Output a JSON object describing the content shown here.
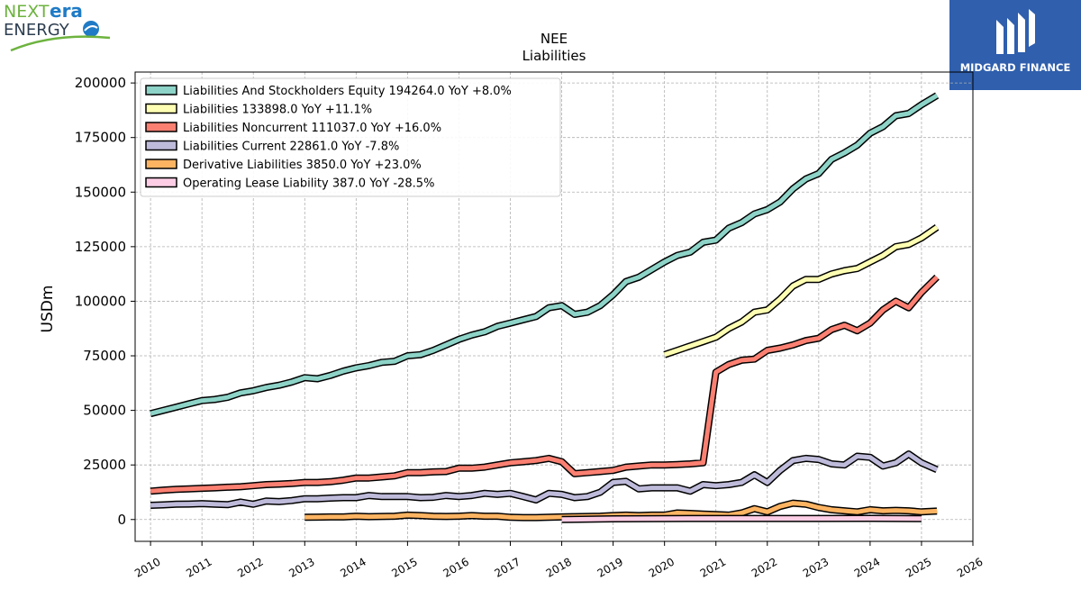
{
  "logos": {
    "left_brand_prefix": "NEXT",
    "left_brand_suffix": "era",
    "left_brand_line2": "ENERGY",
    "right_brand": "MIDGARD FINANCE"
  },
  "colors": {
    "nextera_green": "#6db33f",
    "nextera_blue": "#1f7bc6",
    "midgard_blue": "#2f5fad"
  },
  "chart_data": {
    "type": "line",
    "title": "NEE",
    "subtitle": "Liabilities",
    "xlabel": "",
    "ylabel": "USDm",
    "xlim": [
      2009.7,
      2026.0
    ],
    "ylim": [
      -10000,
      205000
    ],
    "xticks": [
      2010,
      2011,
      2012,
      2013,
      2014,
      2015,
      2016,
      2017,
      2018,
      2019,
      2020,
      2021,
      2022,
      2023,
      2024,
      2025,
      2026
    ],
    "yticks": [
      0,
      25000,
      50000,
      75000,
      100000,
      125000,
      150000,
      175000,
      200000
    ],
    "ytick_labels": [
      "0",
      "25000",
      "50000",
      "75000",
      "100000",
      "125000",
      "150000",
      "175000",
      "200000"
    ],
    "grid": true,
    "legend_position": "top-left",
    "series": [
      {
        "name": "Liabilities And Stockholders Equity",
        "legend": "Liabilities And Stockholders Equity  194264.0 YoY +8.0%",
        "color": "#8dd3c7",
        "points": [
          [
            2010.0,
            48500
          ],
          [
            2010.25,
            50000
          ],
          [
            2010.5,
            51500
          ],
          [
            2010.75,
            53000
          ],
          [
            2011.0,
            54500
          ],
          [
            2011.25,
            55000
          ],
          [
            2011.5,
            56000
          ],
          [
            2011.75,
            58000
          ],
          [
            2012.0,
            59000
          ],
          [
            2012.25,
            60500
          ],
          [
            2012.5,
            61500
          ],
          [
            2012.75,
            63000
          ],
          [
            2013.0,
            65000
          ],
          [
            2013.25,
            64500
          ],
          [
            2013.5,
            66000
          ],
          [
            2013.75,
            68000
          ],
          [
            2014.0,
            69500
          ],
          [
            2014.25,
            70500
          ],
          [
            2014.5,
            72000
          ],
          [
            2014.75,
            72500
          ],
          [
            2015.0,
            75000
          ],
          [
            2015.25,
            75500
          ],
          [
            2015.5,
            77500
          ],
          [
            2015.75,
            80000
          ],
          [
            2016.0,
            82500
          ],
          [
            2016.25,
            84500
          ],
          [
            2016.5,
            86000
          ],
          [
            2016.75,
            88500
          ],
          [
            2017.0,
            90000
          ],
          [
            2017.25,
            91500
          ],
          [
            2017.5,
            93000
          ],
          [
            2017.75,
            97000
          ],
          [
            2018.0,
            98000
          ],
          [
            2018.25,
            94000
          ],
          [
            2018.5,
            95000
          ],
          [
            2018.75,
            98000
          ],
          [
            2019.0,
            103000
          ],
          [
            2019.25,
            109000
          ],
          [
            2019.5,
            111000
          ],
          [
            2019.75,
            114500
          ],
          [
            2020.0,
            118000
          ],
          [
            2020.25,
            121000
          ],
          [
            2020.5,
            122500
          ],
          [
            2020.75,
            127000
          ],
          [
            2021.0,
            128000
          ],
          [
            2021.25,
            133500
          ],
          [
            2021.5,
            136000
          ],
          [
            2021.75,
            140000
          ],
          [
            2022.0,
            142000
          ],
          [
            2022.25,
            145500
          ],
          [
            2022.5,
            151500
          ],
          [
            2022.75,
            156000
          ],
          [
            2023.0,
            158500
          ],
          [
            2023.25,
            165000
          ],
          [
            2023.5,
            168000
          ],
          [
            2023.75,
            171500
          ],
          [
            2024.0,
            177000
          ],
          [
            2024.25,
            180000
          ],
          [
            2024.5,
            185000
          ],
          [
            2024.75,
            186000
          ],
          [
            2025.0,
            190000
          ],
          [
            2025.3,
            194264
          ]
        ]
      },
      {
        "name": "Liabilities",
        "legend": "Liabilities  133898.0 YoY +11.1%",
        "color": "#ffffb3",
        "points": [
          [
            2020.0,
            75500
          ],
          [
            2020.25,
            77500
          ],
          [
            2020.5,
            79500
          ],
          [
            2020.75,
            81500
          ],
          [
            2021.0,
            83500
          ],
          [
            2021.25,
            87500
          ],
          [
            2021.5,
            90500
          ],
          [
            2021.75,
            95000
          ],
          [
            2022.0,
            96000
          ],
          [
            2022.25,
            101000
          ],
          [
            2022.5,
            107000
          ],
          [
            2022.75,
            110000
          ],
          [
            2023.0,
            110000
          ],
          [
            2023.25,
            112500
          ],
          [
            2023.5,
            114000
          ],
          [
            2023.75,
            115000
          ],
          [
            2024.0,
            118000
          ],
          [
            2024.25,
            121000
          ],
          [
            2024.5,
            125000
          ],
          [
            2024.75,
            126000
          ],
          [
            2025.0,
            129000
          ],
          [
            2025.3,
            133898
          ]
        ]
      },
      {
        "name": "Liabilities Noncurrent",
        "legend": "Liabilities Noncurrent  111037.0 YoY +16.0%",
        "color": "#fb8072",
        "points": [
          [
            2010.0,
            13000
          ],
          [
            2010.25,
            13500
          ],
          [
            2010.5,
            13800
          ],
          [
            2010.75,
            14000
          ],
          [
            2011.0,
            14300
          ],
          [
            2011.25,
            14500
          ],
          [
            2011.5,
            14800
          ],
          [
            2011.75,
            15000
          ],
          [
            2012.0,
            15500
          ],
          [
            2012.25,
            16000
          ],
          [
            2012.5,
            16200
          ],
          [
            2012.75,
            16500
          ],
          [
            2013.0,
            17000
          ],
          [
            2013.25,
            17000
          ],
          [
            2013.5,
            17300
          ],
          [
            2013.75,
            18000
          ],
          [
            2014.0,
            19000
          ],
          [
            2014.25,
            19000
          ],
          [
            2014.5,
            19500
          ],
          [
            2014.75,
            20000
          ],
          [
            2015.0,
            21500
          ],
          [
            2015.25,
            21500
          ],
          [
            2015.5,
            21800
          ],
          [
            2015.75,
            22000
          ],
          [
            2016.0,
            23500
          ],
          [
            2016.25,
            23500
          ],
          [
            2016.5,
            24000
          ],
          [
            2016.75,
            25000
          ],
          [
            2017.0,
            26000
          ],
          [
            2017.25,
            26500
          ],
          [
            2017.5,
            27000
          ],
          [
            2017.75,
            28000
          ],
          [
            2018.0,
            26500
          ],
          [
            2018.25,
            21000
          ],
          [
            2018.5,
            21500
          ],
          [
            2018.75,
            22000
          ],
          [
            2019.0,
            22500
          ],
          [
            2019.25,
            24000
          ],
          [
            2019.5,
            24500
          ],
          [
            2019.75,
            25000
          ],
          [
            2020.0,
            25000
          ],
          [
            2020.25,
            25200
          ],
          [
            2020.5,
            25500
          ],
          [
            2020.75,
            26000
          ],
          [
            2021.0,
            67500
          ],
          [
            2021.25,
            71000
          ],
          [
            2021.5,
            73000
          ],
          [
            2021.75,
            73500
          ],
          [
            2022.0,
            77500
          ],
          [
            2022.25,
            78500
          ],
          [
            2022.5,
            80000
          ],
          [
            2022.75,
            82000
          ],
          [
            2023.0,
            83000
          ],
          [
            2023.25,
            87000
          ],
          [
            2023.5,
            89000
          ],
          [
            2023.75,
            86500
          ],
          [
            2024.0,
            90000
          ],
          [
            2024.25,
            96000
          ],
          [
            2024.5,
            100000
          ],
          [
            2024.75,
            97000
          ],
          [
            2025.0,
            104000
          ],
          [
            2025.3,
            111037
          ]
        ]
      },
      {
        "name": "Liabilities Current",
        "legend": "Liabilities Current  22861.0 YoY -7.8%",
        "color": "#bebada",
        "points": [
          [
            2010.0,
            6500
          ],
          [
            2010.25,
            6700
          ],
          [
            2010.5,
            7000
          ],
          [
            2010.75,
            7100
          ],
          [
            2011.0,
            7300
          ],
          [
            2011.25,
            7000
          ],
          [
            2011.5,
            6800
          ],
          [
            2011.75,
            8000
          ],
          [
            2012.0,
            7000
          ],
          [
            2012.25,
            8500
          ],
          [
            2012.5,
            8200
          ],
          [
            2012.75,
            8700
          ],
          [
            2013.0,
            9500
          ],
          [
            2013.25,
            9500
          ],
          [
            2013.5,
            9800
          ],
          [
            2013.75,
            10000
          ],
          [
            2014.0,
            10000
          ],
          [
            2014.25,
            11000
          ],
          [
            2014.5,
            10500
          ],
          [
            2014.75,
            10500
          ],
          [
            2015.0,
            10500
          ],
          [
            2015.25,
            10000
          ],
          [
            2015.5,
            10200
          ],
          [
            2015.75,
            11000
          ],
          [
            2016.0,
            10500
          ],
          [
            2016.25,
            11000
          ],
          [
            2016.5,
            12000
          ],
          [
            2016.75,
            11500
          ],
          [
            2017.0,
            12000
          ],
          [
            2017.25,
            10500
          ],
          [
            2017.5,
            9000
          ],
          [
            2017.75,
            12000
          ],
          [
            2018.0,
            11500
          ],
          [
            2018.25,
            10000
          ],
          [
            2018.5,
            10500
          ],
          [
            2018.75,
            12500
          ],
          [
            2019.0,
            17000
          ],
          [
            2019.25,
            17500
          ],
          [
            2019.5,
            14000
          ],
          [
            2019.75,
            14500
          ],
          [
            2020.0,
            14500
          ],
          [
            2020.25,
            14500
          ],
          [
            2020.5,
            13000
          ],
          [
            2020.75,
            16000
          ],
          [
            2021.0,
            15500
          ],
          [
            2021.25,
            16000
          ],
          [
            2021.5,
            17000
          ],
          [
            2021.75,
            20500
          ],
          [
            2022.0,
            17000
          ],
          [
            2022.25,
            22500
          ],
          [
            2022.5,
            27000
          ],
          [
            2022.75,
            28000
          ],
          [
            2023.0,
            27500
          ],
          [
            2023.25,
            25500
          ],
          [
            2023.5,
            25000
          ],
          [
            2023.75,
            29000
          ],
          [
            2024.0,
            28500
          ],
          [
            2024.25,
            24500
          ],
          [
            2024.5,
            26000
          ],
          [
            2024.75,
            30000
          ],
          [
            2025.0,
            26000
          ],
          [
            2025.3,
            22861
          ]
        ]
      },
      {
        "name": "Derivative Liabilities",
        "legend": "Derivative Liabilities  3850.0 YoY +23.0%",
        "color": "#fdb462",
        "points": [
          [
            2013.0,
            1000
          ],
          [
            2013.25,
            1100
          ],
          [
            2013.5,
            1200
          ],
          [
            2013.75,
            1200
          ],
          [
            2014.0,
            1500
          ],
          [
            2014.25,
            1300
          ],
          [
            2014.5,
            1400
          ],
          [
            2014.75,
            1500
          ],
          [
            2015.0,
            2000
          ],
          [
            2015.25,
            1800
          ],
          [
            2015.5,
            1500
          ],
          [
            2015.75,
            1400
          ],
          [
            2016.0,
            1500
          ],
          [
            2016.25,
            1800
          ],
          [
            2016.5,
            1500
          ],
          [
            2016.75,
            1500
          ],
          [
            2017.0,
            1000
          ],
          [
            2017.25,
            900
          ],
          [
            2017.5,
            900
          ],
          [
            2017.75,
            1000
          ],
          [
            2018.0,
            1200
          ],
          [
            2018.25,
            1300
          ],
          [
            2018.5,
            1400
          ],
          [
            2018.75,
            1500
          ],
          [
            2019.0,
            1800
          ],
          [
            2019.25,
            2000
          ],
          [
            2019.5,
            1800
          ],
          [
            2019.75,
            2000
          ],
          [
            2020.0,
            2000
          ],
          [
            2020.25,
            3000
          ],
          [
            2020.5,
            2800
          ],
          [
            2020.75,
            2500
          ],
          [
            2021.0,
            2300
          ],
          [
            2021.25,
            2000
          ],
          [
            2021.5,
            3000
          ],
          [
            2021.75,
            5000
          ],
          [
            2022.0,
            3500
          ],
          [
            2022.25,
            6000
          ],
          [
            2022.5,
            7500
          ],
          [
            2022.75,
            7000
          ],
          [
            2023.0,
            5500
          ],
          [
            2023.25,
            4500
          ],
          [
            2023.5,
            4000
          ],
          [
            2023.75,
            3500
          ],
          [
            2024.0,
            4500
          ],
          [
            2024.25,
            4000
          ],
          [
            2024.5,
            4200
          ],
          [
            2024.75,
            4000
          ],
          [
            2025.0,
            3500
          ],
          [
            2025.3,
            3850
          ]
        ]
      },
      {
        "name": "Operating Lease Liability",
        "legend": "Operating Lease Liability  387.0 YoY -28.5%",
        "color": "#fccde5",
        "points": [
          [
            2018.0,
            0
          ],
          [
            2019.0,
            300
          ],
          [
            2020.0,
            450
          ],
          [
            2021.0,
            500
          ],
          [
            2022.0,
            500
          ],
          [
            2023.0,
            500
          ],
          [
            2024.0,
            520
          ],
          [
            2025.0,
            387
          ]
        ]
      }
    ]
  }
}
